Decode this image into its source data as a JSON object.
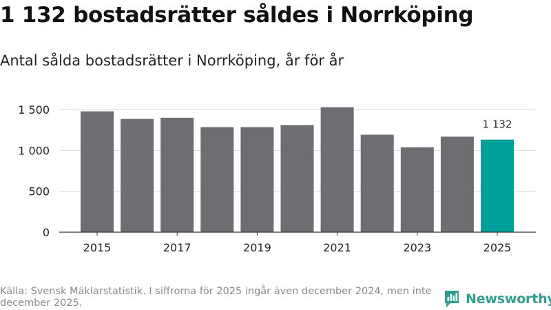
{
  "title": "1 132 bostadsrätter såldes i Norrköping",
  "subtitle": "Antal sålda bostadsrätter i Norrköping, år för år",
  "footer": {
    "source": "Källa: Svensk Mäklarstatistik. I siffrorna för 2025 ingår även december 2024, men inte december 2025.",
    "brand": "Newsworthy",
    "brand_icon": "newsworthy-logo-icon"
  },
  "colors": {
    "bar": "#6e6d72",
    "highlight": "#00a19a",
    "grid": "#d9d9d9",
    "axis": "#333333",
    "brand": "#2e9e8f"
  },
  "chart_data": {
    "type": "bar",
    "title": "1 132 bostadsrätter såldes i Norrköping",
    "subtitle": "Antal sålda bostadsrätter i Norrköping, år för år",
    "xlabel": "",
    "ylabel": "",
    "categories": [
      "2015",
      "2016",
      "2017",
      "2018",
      "2019",
      "2020",
      "2021",
      "2022",
      "2023",
      "2024",
      "2025"
    ],
    "values": [
      1478,
      1385,
      1400,
      1285,
      1285,
      1310,
      1528,
      1192,
      1038,
      1168,
      1132
    ],
    "highlight_index": 10,
    "highlight_label": "1 132",
    "ylim": [
      0,
      1500
    ],
    "yticks": [
      0,
      500,
      1000,
      1500
    ],
    "ytick_labels": [
      "0",
      "500",
      "1 000",
      "1 500"
    ],
    "xtick_labels": [
      "2015",
      "2017",
      "2019",
      "2021",
      "2023",
      "2025"
    ],
    "grid": true,
    "legend": "none"
  }
}
